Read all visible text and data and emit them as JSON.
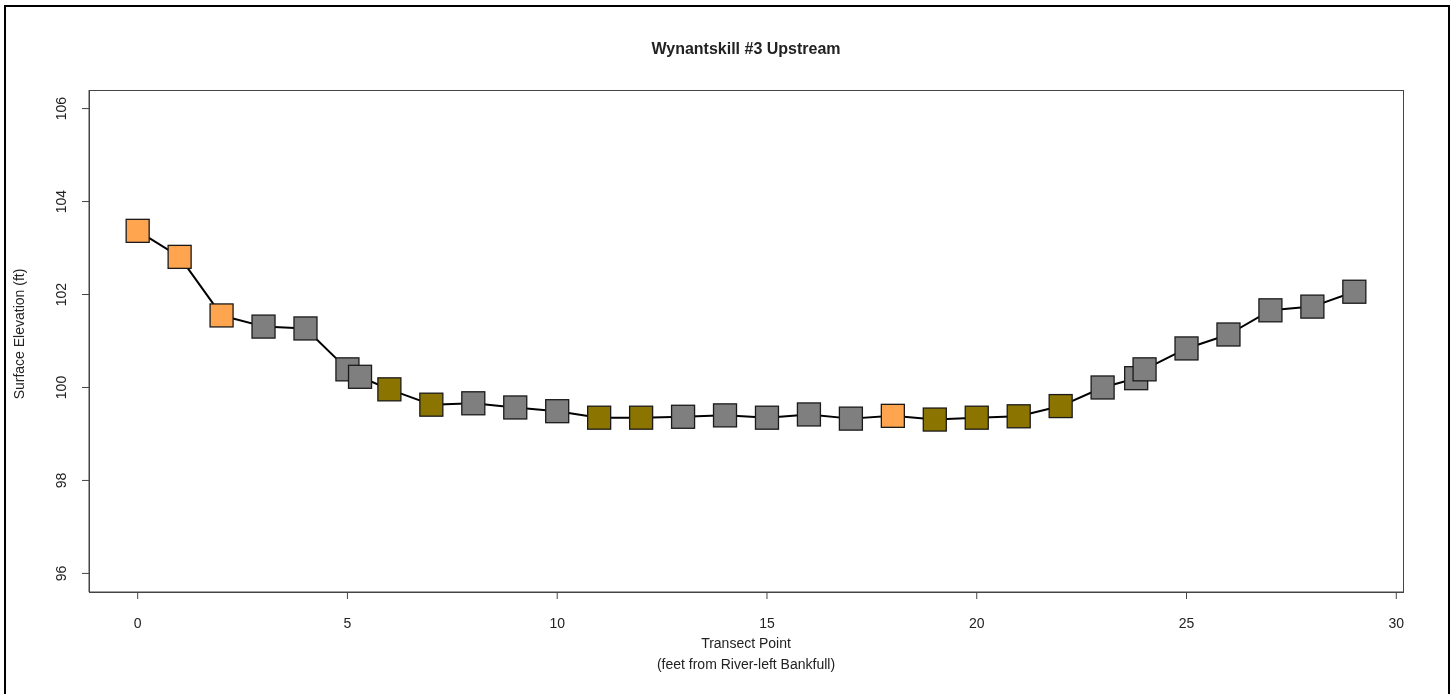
{
  "chart_data": {
    "type": "line",
    "title": "Wynantskill #3 Upstream",
    "xlabel": "Transect Point\n(feet from River-left Bankfull)",
    "ylabel": "Surface Elevation (ft)",
    "x": [
      0,
      1,
      2,
      3,
      4,
      5,
      5.3,
      6,
      7,
      8,
      9,
      10,
      11,
      12,
      13,
      14,
      15,
      16,
      17,
      18,
      19,
      20,
      21,
      22,
      23,
      23.8,
      24,
      25,
      26,
      27,
      28,
      29
    ],
    "series": [
      {
        "color": "#000000",
        "values": [
          103.37,
          102.81,
          101.55,
          101.31,
          101.27,
          100.39,
          100.23,
          99.96,
          99.63,
          99.66,
          99.57,
          99.49,
          99.35,
          99.35,
          99.37,
          99.4,
          99.35,
          99.42,
          99.33,
          99.39,
          99.31,
          99.35,
          99.38,
          99.6,
          100.0,
          100.2,
          100.39,
          100.84,
          101.14,
          101.66,
          101.74,
          102.06
        ],
        "colors": [
          "#ffa54f",
          "#ffa54f",
          "#ffa54f",
          "#7f7f7f",
          "#7f7f7f",
          "#7f7f7f",
          "#7f7f7f",
          "#8b7500",
          "#8b7500",
          "#7f7f7f",
          "#7f7f7f",
          "#7f7f7f",
          "#8b7500",
          "#8b7500",
          "#7f7f7f",
          "#7f7f7f",
          "#7f7f7f",
          "#7f7f7f",
          "#7f7f7f",
          "#ffa54f",
          "#8b7500",
          "#8b7500",
          "#8b7500",
          "#8b7500",
          "#7f7f7f",
          "#7f7f7f",
          "#7f7f7f",
          "#7f7f7f",
          "#7f7f7f",
          "#7f7f7f",
          "#7f7f7f",
          "#7f7f7f"
        ]
      }
    ],
    "marker": "square",
    "line_style": "solid",
    "xlim": [
      -1.16,
      30.16
    ],
    "xticks": [
      0,
      5,
      10,
      15,
      20,
      25,
      30
    ],
    "ylim": [
      95.6,
      106.4
    ],
    "yticks": [
      96,
      98,
      100,
      102,
      104,
      106
    ]
  }
}
